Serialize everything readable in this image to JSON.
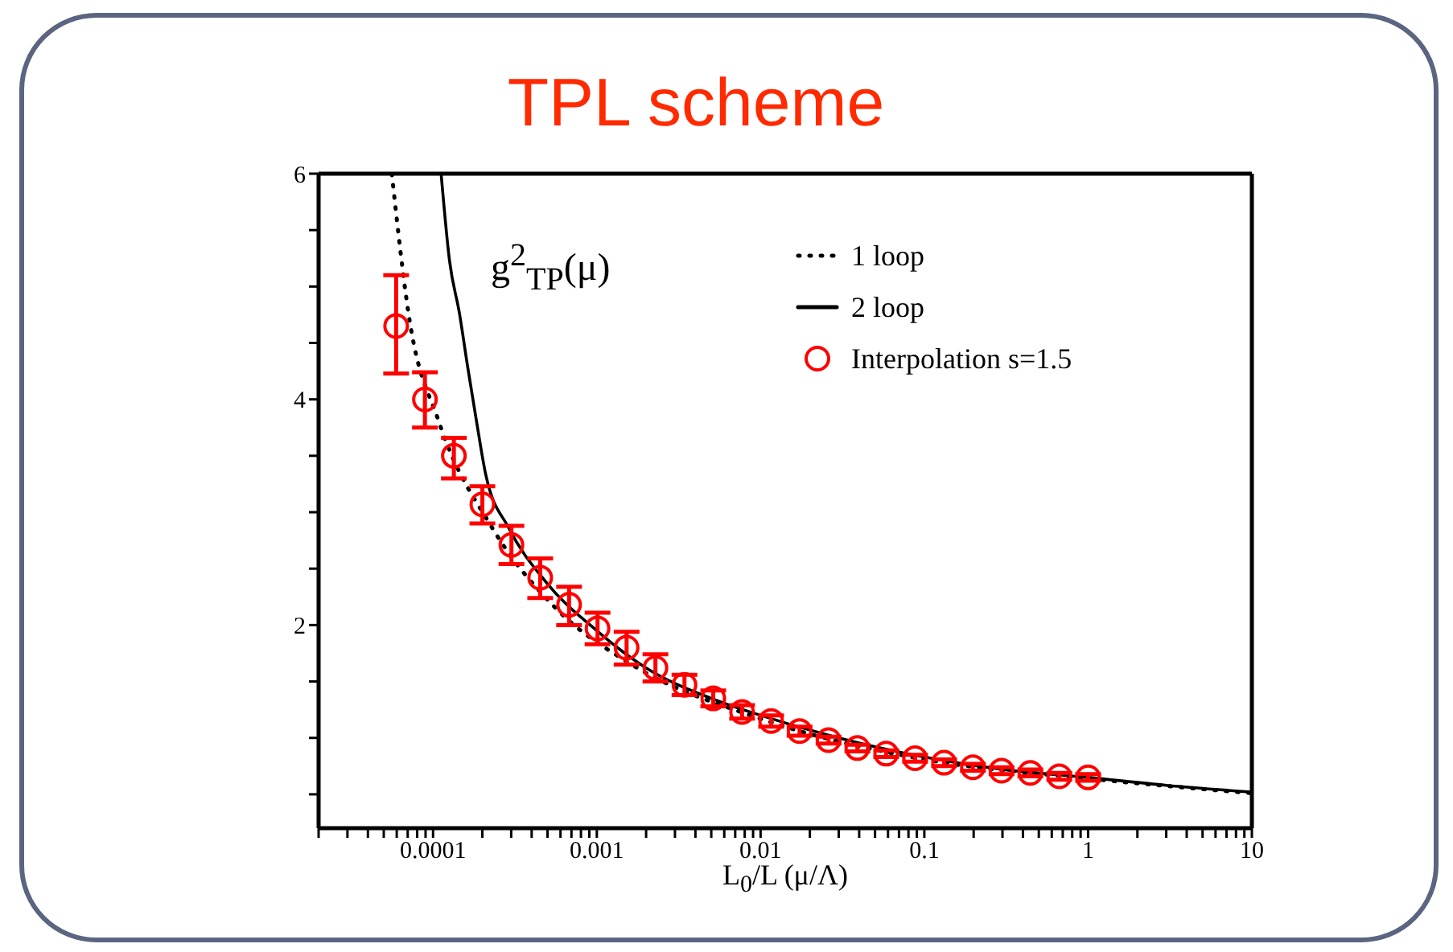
{
  "chart_data": {
    "type": "scatter",
    "title": "TPL scheme",
    "xlabel": "L$_{0}$/L (μ/Λ)",
    "annotations": [
      "g$^{2}$$_{TP}$(μ)"
    ],
    "log": "x",
    "grid": false,
    "legend": "top right",
    "xlim": [
      2e-05,
      10
    ],
    "ylim": [
      0.2,
      6
    ],
    "xticks": [
      {
        "value": 2e-05,
        "label": null
      },
      {
        "value": 3e-05,
        "label": null
      },
      {
        "value": 4e-05,
        "label": null
      },
      {
        "value": 5e-05,
        "label": null
      },
      {
        "value": 6e-05,
        "label": null
      },
      {
        "value": 7e-05,
        "label": null
      },
      {
        "value": 8e-05,
        "label": null
      },
      {
        "value": 9e-05,
        "label": null
      },
      0.0001,
      {
        "value": 0.0002,
        "label": null
      },
      {
        "value": 0.0003,
        "label": null
      },
      {
        "value": 0.0004,
        "label": null
      },
      {
        "value": 0.0005,
        "label": null
      },
      {
        "value": 0.0006,
        "label": null
      },
      {
        "value": 0.0007,
        "label": null
      },
      {
        "value": 0.0008,
        "label": null
      },
      {
        "value": 0.0009,
        "label": null
      },
      0.001,
      {
        "value": 0.002,
        "label": null
      },
      {
        "value": 0.003,
        "label": null
      },
      {
        "value": 0.004,
        "label": null
      },
      {
        "value": 0.005,
        "label": null
      },
      {
        "value": 0.006,
        "label": null
      },
      {
        "value": 0.007,
        "label": null
      },
      {
        "value": 0.008,
        "label": null
      },
      {
        "value": 0.009,
        "label": null
      },
      0.01,
      {
        "value": 0.02,
        "label": null
      },
      {
        "value": 0.03,
        "label": null
      },
      {
        "value": 0.04,
        "label": null
      },
      {
        "value": 0.05,
        "label": null
      },
      {
        "value": 0.06,
        "label": null
      },
      {
        "value": 0.07,
        "label": null
      },
      {
        "value": 0.08,
        "label": null
      },
      {
        "value": 0.09,
        "label": null
      },
      0.1,
      {
        "value": 0.2,
        "label": null
      },
      {
        "value": 0.3,
        "label": null
      },
      {
        "value": 0.4,
        "label": null
      },
      {
        "value": 0.5,
        "label": null
      },
      {
        "value": 0.6,
        "label": null
      },
      {
        "value": 0.7,
        "label": null
      },
      {
        "value": 0.8,
        "label": null
      },
      {
        "value": 0.9,
        "label": null
      },
      1,
      {
        "value": 2,
        "label": null
      },
      {
        "value": 3,
        "label": null
      },
      {
        "value": 4,
        "label": null
      },
      {
        "value": 5,
        "label": null
      },
      {
        "value": 6,
        "label": null
      },
      {
        "value": 7,
        "label": null
      },
      {
        "value": 8,
        "label": null
      },
      {
        "value": 9,
        "label": null
      },
      10
    ],
    "yticks": [
      {
        "value": 0.5,
        "label": null
      },
      {
        "value": 1,
        "label": null
      },
      {
        "value": 1.5,
        "label": null
      },
      2,
      {
        "value": 2.5,
        "label": null
      },
      {
        "value": 3,
        "label": null
      },
      {
        "value": 3.5,
        "label": null
      },
      4,
      {
        "value": 4.5,
        "label": null
      },
      {
        "value": 5,
        "label": null
      },
      {
        "value": 5.5,
        "label": null
      },
      6
    ],
    "series": [
      {
        "name": "1 loop",
        "type": "line",
        "line_style": "dotted",
        "marker": "none",
        "color": "#000000",
        "x": [
          5.6e-05,
          7.1e-05,
          0.000108,
          0.00023,
          0.00057,
          0.00155,
          0.01,
          0.1,
          1,
          10
        ],
        "values": [
          6,
          4.75,
          3.81,
          2.86,
          2.14,
          1.67,
          1.17,
          0.81,
          0.64,
          0.51
        ]
      },
      {
        "name": "2 loop",
        "type": "line",
        "line_style": "solid",
        "marker": "none",
        "color": "#000000",
        "x": [
          0.000112,
          0.000126,
          0.000145,
          0.000163,
          0.000184,
          0.00021,
          0.00029,
          0.00049,
          0.001,
          0.002,
          0.005,
          0.01,
          0.03,
          0.1,
          0.3,
          1,
          3,
          10
        ],
        "values": [
          6,
          5.23,
          4.76,
          4.28,
          3.81,
          3.33,
          2.86,
          2.38,
          1.95,
          1.62,
          1.35,
          1.2,
          1.0,
          0.83,
          0.72,
          0.65,
          0.58,
          0.52
        ]
      },
      {
        "name": "Interpolation s=1.5",
        "marker": "circle",
        "color": "#ff0000",
        "x": [
          5.95e-05,
          8.92e-05,
          0.000134,
          0.0002,
          0.000301,
          0.000451,
          0.000677,
          0.00101,
          0.00152,
          0.00228,
          0.00343,
          0.00514,
          0.00771,
          0.0116,
          0.0173,
          0.026,
          0.039,
          0.0585,
          0.0878,
          0.132,
          0.198,
          0.296,
          0.444,
          0.667,
          1
        ],
        "values": [
          4.65,
          4.0,
          3.5,
          3.07,
          2.71,
          2.42,
          2.18,
          1.97,
          1.8,
          1.62,
          1.47,
          1.35,
          1.23,
          1.15,
          1.06,
          0.98,
          0.91,
          0.86,
          0.82,
          0.78,
          0.74,
          0.71,
          0.69,
          0.66,
          0.65
        ],
        "errors": [
          [
            4.23,
            5.1
          ],
          [
            3.75,
            4.24
          ],
          [
            3.3,
            3.66
          ],
          [
            2.9,
            3.23
          ],
          [
            2.54,
            2.88
          ],
          [
            2.24,
            2.59
          ],
          [
            2.0,
            2.34
          ],
          [
            1.83,
            2.11
          ],
          [
            1.65,
            1.94
          ],
          0.12,
          0.09,
          0.07,
          0.06,
          0.05,
          0.04,
          0.03,
          0.03,
          0.03,
          0.03,
          0.03,
          0.03,
          0.03,
          0.03,
          0.03,
          0.03
        ]
      }
    ]
  }
}
